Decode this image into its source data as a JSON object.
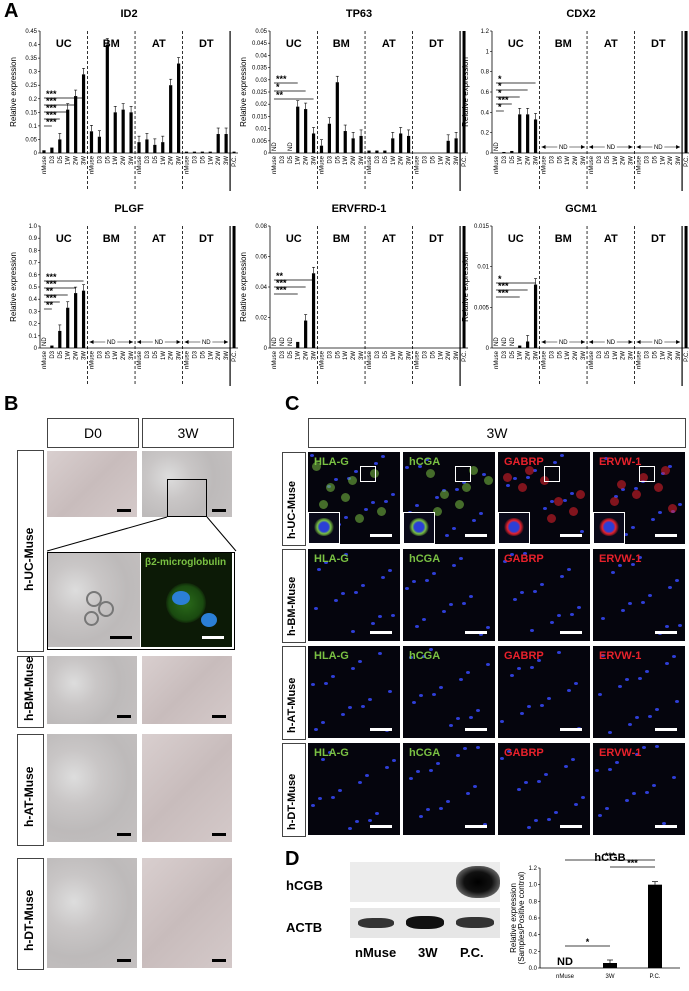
{
  "panels": {
    "A": "A",
    "B": "B",
    "C": "C",
    "D": "D"
  },
  "tick_labels": [
    "nMuse",
    "D3",
    "D5",
    "1W",
    "2W",
    "3W",
    "nMuse",
    "D3",
    "D5",
    "1W",
    "2W",
    "3W",
    "nMuse",
    "D3",
    "D5",
    "1W",
    "2W",
    "3W",
    "nMuse",
    "D3",
    "D5",
    "1W",
    "2W",
    "3W",
    "P.C."
  ],
  "groups": [
    "UC",
    "BM",
    "AT",
    "DT"
  ],
  "nd": "ND",
  "ylabel": "Relative expression",
  "panel_b": {
    "cols": [
      "D0",
      "3W"
    ],
    "rows": [
      "h-UC-Muse",
      "h-BM-Muse",
      "h-AT-Muse",
      "h-DT-Muse"
    ],
    "inset_label": "β2-microglobulin"
  },
  "panel_c": {
    "header": "3W",
    "rows": [
      "h-UC-Muse",
      "h-BM-Muse",
      "h-AT-Muse",
      "h-DT-Muse"
    ],
    "markers": [
      {
        "name": "HLA-G",
        "color": "#7ac143"
      },
      {
        "name": "hCGA",
        "color": "#7ac143"
      },
      {
        "name": "GABRP",
        "color": "#e8212b"
      },
      {
        "name": "ERVW-1",
        "color": "#e8212b"
      }
    ]
  },
  "panel_d": {
    "blot_labels": [
      "hCGB",
      "ACTB"
    ],
    "lanes": [
      "nMuse",
      "3W",
      "P.C."
    ]
  },
  "chart_data": [
    {
      "type": "bar",
      "title": "ID2",
      "ylim": [
        0,
        0.45
      ],
      "yticks": [
        "0",
        "0.05",
        "0.1",
        "0.15",
        "0.2",
        "0.25",
        "0.3",
        "0.35",
        "0.4",
        "0.45"
      ],
      "values": [
        0.01,
        0.02,
        0.05,
        0.16,
        0.21,
        0.29,
        0.08,
        0.06,
        0.4,
        0.15,
        0.16,
        0.15,
        0.04,
        0.05,
        0.03,
        0.04,
        0.25,
        0.33,
        0.005,
        0.005,
        0.005,
        0.005,
        0.07,
        0.07,
        0.005
      ],
      "nd_indices": [],
      "groups_shown": [
        "UC",
        "BM",
        "AT",
        "DT"
      ],
      "nd_ranges": []
    },
    {
      "type": "bar",
      "title": "TP63",
      "ylim": [
        0,
        0.05
      ],
      "yticks": [
        "0",
        "0.005",
        "0.01",
        "0.015",
        "0.02",
        "0.025",
        "0.03",
        "0.035",
        "0.04",
        "0.045",
        "0.05"
      ],
      "values": [
        0,
        0,
        0,
        0.019,
        0.018,
        0.008,
        0.003,
        0.012,
        0.029,
        0.009,
        0.006,
        0.007,
        0.001,
        0.001,
        0.001,
        0.006,
        0.008,
        0.007,
        0,
        0,
        0,
        0,
        0.005,
        0.006,
        0.05
      ],
      "nd_indices": [
        0,
        2
      ],
      "groups_shown": [
        "UC",
        "BM",
        "AT",
        "DT"
      ],
      "nd_ranges": []
    },
    {
      "type": "bar",
      "title": "CDX2",
      "ylim": [
        0,
        1.2
      ],
      "yticks": [
        "0",
        "0.2",
        "0.4",
        "0.6",
        "0.8",
        "1",
        "1.2"
      ],
      "values": [
        0,
        0.01,
        0.02,
        0.38,
        0.38,
        0.33,
        0,
        0,
        0,
        0,
        0,
        0,
        0,
        0,
        0,
        0,
        0,
        0,
        0,
        0,
        0,
        0,
        0,
        0,
        1.2
      ],
      "nd_indices": [
        0
      ],
      "groups_shown": [
        "UC",
        "BM",
        "AT",
        "DT"
      ],
      "nd_ranges": [
        "BM",
        "AT",
        "DT"
      ]
    },
    {
      "type": "bar",
      "title": "PLGF",
      "ylim": [
        0,
        1.0
      ],
      "yticks": [
        "0",
        "0.1",
        "0.2",
        "0.3",
        "0.4",
        "0.5",
        "0.6",
        "0.7",
        "0.8",
        "0.9",
        "1.0"
      ],
      "values": [
        0,
        0.02,
        0.14,
        0.33,
        0.45,
        0.47,
        0,
        0,
        0,
        0,
        0,
        0,
        0,
        0,
        0,
        0,
        0,
        0,
        0,
        0,
        0,
        0,
        0,
        0,
        1.0
      ],
      "nd_indices": [
        0
      ],
      "groups_shown": [
        "UC",
        "BM",
        "AT",
        "DT"
      ],
      "nd_ranges": [
        "BM",
        "AT",
        "DT"
      ]
    },
    {
      "type": "bar",
      "title": "ERVFRD-1",
      "ylim": [
        0,
        0.08
      ],
      "yticks": [
        "0",
        "0.02",
        "0.04",
        "0.06",
        "0.08"
      ],
      "values": [
        0,
        0,
        0,
        0.004,
        0.018,
        0.049,
        0,
        0,
        0,
        0,
        0,
        0,
        0,
        0,
        0,
        0,
        0,
        0,
        0,
        0,
        0,
        0,
        0,
        0,
        0.08
      ],
      "nd_indices": [
        0,
        1,
        2
      ],
      "groups_shown": [
        "UC",
        "BM",
        "AT",
        "DT"
      ],
      "nd_ranges": []
    },
    {
      "type": "bar",
      "title": "GCM1",
      "ylim": [
        0,
        0.015
      ],
      "yticks": [
        "0",
        "0.005",
        "0.01",
        "0.015"
      ],
      "values": [
        0,
        0,
        0,
        0.0003,
        0.0008,
        0.0078,
        0,
        0,
        0,
        0,
        0,
        0,
        0,
        0,
        0,
        0,
        0,
        0,
        0,
        0,
        0,
        0,
        0,
        0,
        0.015
      ],
      "nd_indices": [
        0,
        1,
        2
      ],
      "groups_shown": [
        "UC",
        "BM",
        "AT",
        "DT"
      ],
      "nd_ranges": [
        "BM",
        "AT",
        "DT"
      ]
    },
    {
      "type": "bar",
      "title": "hCGB",
      "ylabel": "Relative expression\n(Samples/Positive control)",
      "ylim": [
        0,
        1.2
      ],
      "yticks": [
        "0.0",
        "0.2",
        "0.4",
        "0.6",
        "0.8",
        "1.0",
        "1.2"
      ],
      "categories": [
        "nMuse",
        "3W",
        "P.C."
      ],
      "values": [
        0,
        0.06,
        1.0
      ],
      "nd_label": "ND",
      "significance": [
        "*",
        "***",
        "***"
      ]
    }
  ]
}
